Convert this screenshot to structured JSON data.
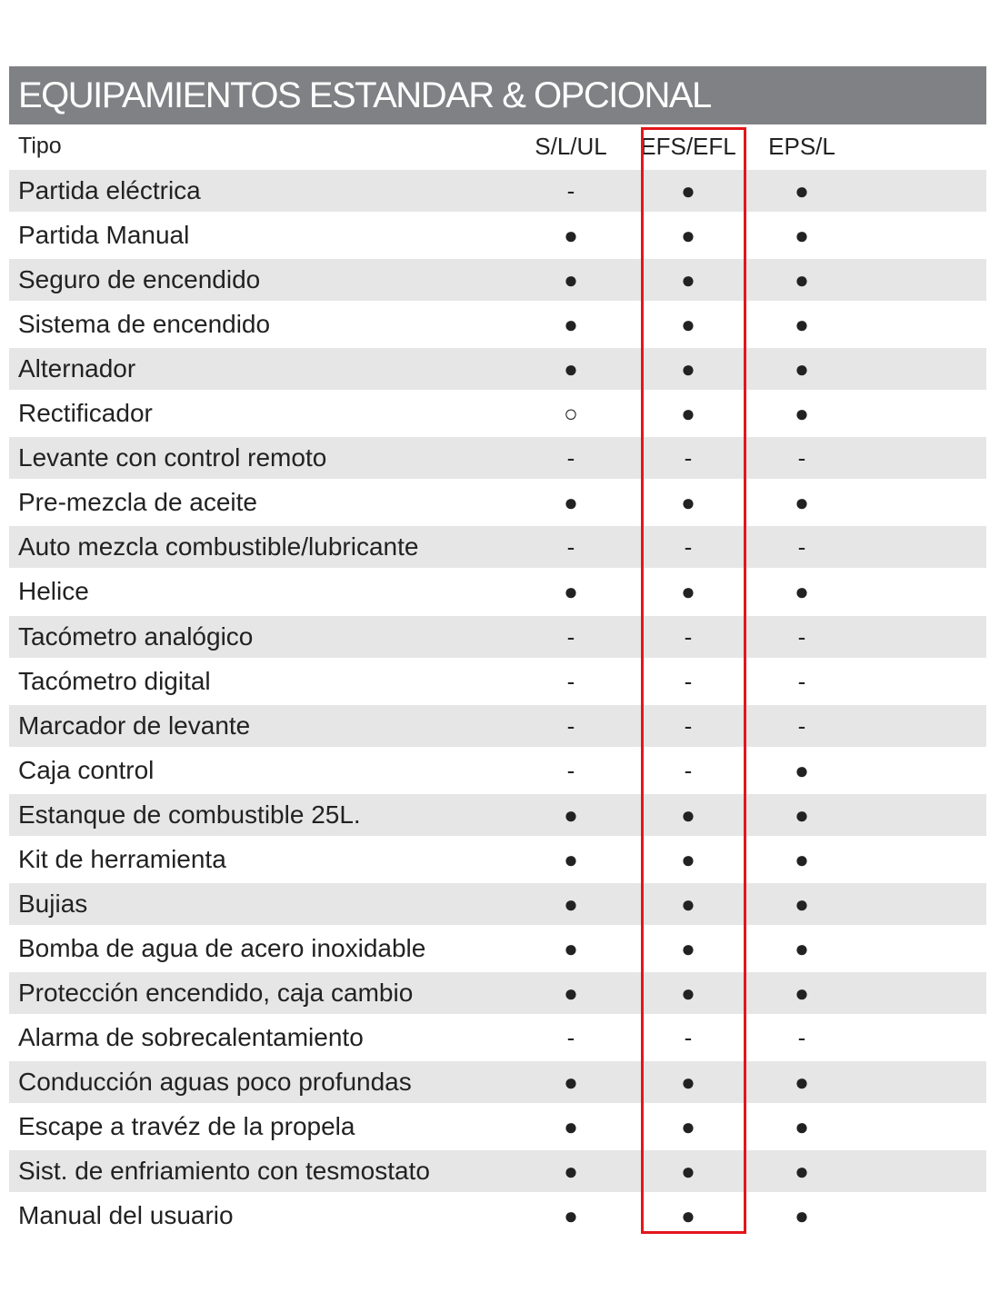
{
  "header": {
    "title": "EQUIPAMIENTOS ESTANDAR & OPCIONAL"
  },
  "table": {
    "columns": [
      "Tipo",
      "S/L/UL",
      "EFS/EFL",
      "EPS/L"
    ],
    "rows": [
      [
        "Partida eléctrica",
        "-",
        "●",
        "●"
      ],
      [
        "Partida Manual",
        "●",
        "●",
        "●"
      ],
      [
        "Seguro de encendido",
        "●",
        "●",
        "●"
      ],
      [
        "Sistema de encendido",
        "●",
        "●",
        "●"
      ],
      [
        "Alternador",
        "●",
        "●",
        "●"
      ],
      [
        "Rectificador",
        "○",
        "●",
        "●"
      ],
      [
        "Levante con control remoto",
        "-",
        "-",
        "-"
      ],
      [
        "Pre-mezcla de aceite",
        "●",
        "●",
        "●"
      ],
      [
        "Auto mezcla combustible/lubricante",
        "-",
        "-",
        "-"
      ],
      [
        "Helice",
        "●",
        "●",
        "●"
      ],
      [
        "Tacómetro analógico",
        "-",
        "-",
        "-"
      ],
      [
        "Tacómetro digital",
        "-",
        "-",
        "-"
      ],
      [
        "Marcador de levante",
        "-",
        "-",
        "-"
      ],
      [
        "Caja control",
        "-",
        "-",
        "●"
      ],
      [
        "Estanque de combustible 25L.",
        "●",
        "●",
        "●"
      ],
      [
        "Kit de herramienta",
        "●",
        "●",
        "●"
      ],
      [
        "Bujias",
        "●",
        "●",
        "●"
      ],
      [
        "Bomba de agua de acero inoxidable",
        "●",
        "●",
        "●"
      ],
      [
        "Protección encendido, caja cambio",
        "●",
        "●",
        "●"
      ],
      [
        "Alarma de sobrecalentamiento",
        "-",
        "-",
        "-"
      ],
      [
        "Conducción aguas poco profundas",
        "●",
        "●",
        "●"
      ],
      [
        "Escape a travéz de la propela",
        "●",
        "●",
        "●"
      ],
      [
        "Sist. de enfriamiento con tesmostato",
        "●",
        "●",
        "●"
      ],
      [
        "Manual del usuario",
        "●",
        "●",
        "●"
      ]
    ]
  }
}
